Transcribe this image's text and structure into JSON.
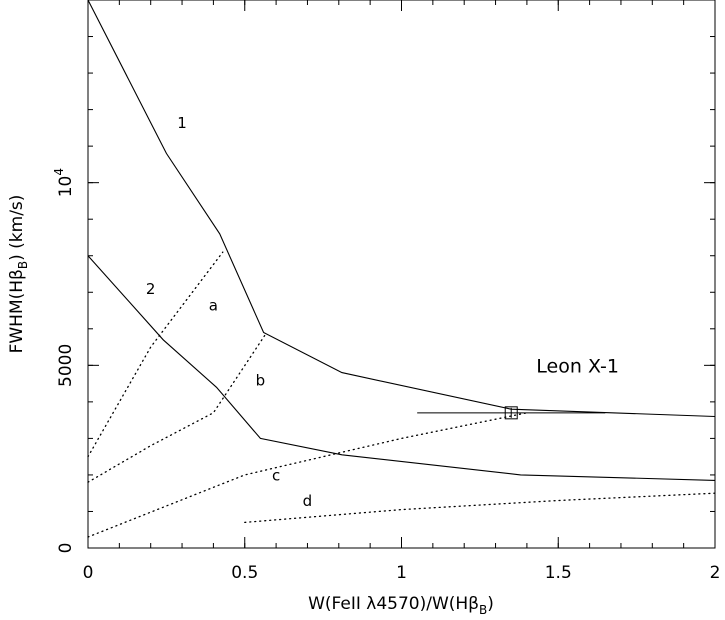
{
  "chart_data": {
    "type": "line",
    "xlabel_parts": {
      "pre": "W(FeII λ4570)/W(Hβ",
      "sub": "B",
      "post": ")"
    },
    "ylabel_parts": {
      "pre": "FWHM(Hβ",
      "sub": "B",
      "post": ")  (km/s)"
    },
    "xlim": [
      0,
      2
    ],
    "ylim": [
      0,
      15000
    ],
    "x_ticks": [
      {
        "value": 0,
        "label": "0"
      },
      {
        "value": 0.5,
        "label": "0.5"
      },
      {
        "value": 1,
        "label": "1"
      },
      {
        "value": 1.5,
        "label": "1.5"
      },
      {
        "value": 2,
        "label": "2"
      }
    ],
    "y_ticks": [
      {
        "value": 0,
        "label": "0"
      },
      {
        "value": 5000,
        "label": "5000"
      }
    ],
    "y_tick_power": {
      "value": 10000,
      "base": "10",
      "exp": "4"
    },
    "x_minor_step": 0.1,
    "y_minor_step": 1000,
    "series": [
      {
        "label": "1",
        "style": "solid",
        "label_at": [
          0.3,
          11500
        ],
        "points": [
          [
            0,
            15000
          ],
          [
            0.25,
            10800
          ],
          [
            0.42,
            8600
          ],
          [
            0.56,
            5900
          ],
          [
            0.81,
            4800
          ],
          [
            1.35,
            3800
          ],
          [
            2.0,
            3600
          ]
        ]
      },
      {
        "label": "2",
        "style": "solid",
        "label_at": [
          0.2,
          6950
        ],
        "points": [
          [
            0,
            8000
          ],
          [
            0.24,
            5700
          ],
          [
            0.41,
            4400
          ],
          [
            0.55,
            3000
          ],
          [
            0.81,
            2550
          ],
          [
            1.38,
            2000
          ],
          [
            2.0,
            1850
          ]
        ]
      },
      {
        "label": "a",
        "style": "dotted",
        "label_at": [
          0.4,
          6500
        ],
        "points": [
          [
            0,
            2500
          ],
          [
            0.2,
            5500
          ],
          [
            0.43,
            8100
          ]
        ]
      },
      {
        "label": "b",
        "style": "dotted",
        "label_at": [
          0.55,
          4450
        ],
        "points": [
          [
            0,
            1800
          ],
          [
            0.2,
            2800
          ],
          [
            0.4,
            3700
          ],
          [
            0.57,
            5900
          ]
        ]
      },
      {
        "label": "c",
        "style": "dotted",
        "label_at": [
          0.6,
          1850
        ],
        "points": [
          [
            0,
            300
          ],
          [
            0.5,
            2000
          ],
          [
            1.0,
            3000
          ],
          [
            1.4,
            3700
          ]
        ]
      },
      {
        "label": "d",
        "style": "dotted",
        "label_at": [
          0.7,
          1150
        ],
        "points": [
          [
            0.5,
            700
          ],
          [
            1.0,
            1050
          ],
          [
            1.5,
            1300
          ],
          [
            2.0,
            1500
          ]
        ]
      }
    ],
    "point": {
      "label": "Leon X-1",
      "x": 1.35,
      "y": 3700,
      "x_err": [
        1.05,
        1.65
      ],
      "label_at": [
        1.43,
        4800
      ]
    }
  }
}
